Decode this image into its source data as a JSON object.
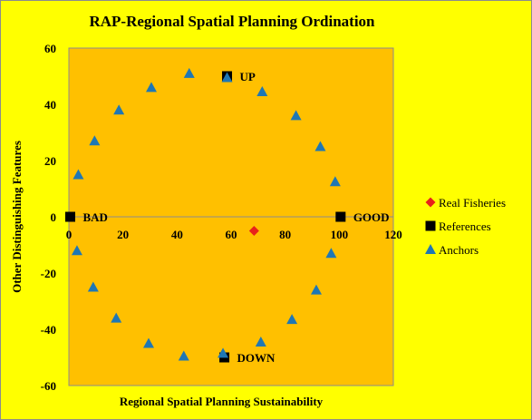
{
  "chart_data": {
    "type": "scatter",
    "title": "RAP-Regional Spatial Planning Ordination",
    "xlabel": "Regional Spatial Planning Sustainability",
    "ylabel": "Other Distinguishing Features",
    "xlim": [
      0,
      120
    ],
    "ylim": [
      -60,
      60
    ],
    "xticks": [
      "0",
      "20",
      "40",
      "60",
      "80",
      "100",
      "120"
    ],
    "yticks": [
      "60",
      "40",
      "20",
      "0",
      "-20",
      "-40",
      "-60"
    ],
    "grid": false,
    "legend_position": "right",
    "colors": {
      "background": "#ffff00",
      "plot_area": "#ffc000",
      "real_fisheries": "#e8221a",
      "references": "#000000",
      "anchors": "#1f77b4"
    },
    "series": [
      {
        "name": "Real Fisheries",
        "marker": "diamond",
        "points": [
          {
            "x": 68.5,
            "y": -5
          }
        ]
      },
      {
        "name": "References",
        "marker": "square",
        "points": [
          {
            "x": 0.5,
            "y": 0,
            "label": "BAD"
          },
          {
            "x": 58.5,
            "y": 50,
            "label": "UP"
          },
          {
            "x": 100.5,
            "y": 0,
            "label": "GOOD"
          },
          {
            "x": 57.5,
            "y": -50,
            "label": "DOWN"
          }
        ]
      },
      {
        "name": "Anchors",
        "marker": "triangle",
        "points": [
          {
            "x": 44.5,
            "y": 51
          },
          {
            "x": 58.5,
            "y": 49.5
          },
          {
            "x": 71.5,
            "y": 44.5
          },
          {
            "x": 30.5,
            "y": 46
          },
          {
            "x": 84,
            "y": 36
          },
          {
            "x": 18.5,
            "y": 38
          },
          {
            "x": 9.5,
            "y": 27
          },
          {
            "x": 93,
            "y": 25
          },
          {
            "x": 3.5,
            "y": 15
          },
          {
            "x": 98.5,
            "y": 12.5
          },
          {
            "x": 3,
            "y": -12
          },
          {
            "x": 97,
            "y": -13
          },
          {
            "x": 9,
            "y": -25
          },
          {
            "x": 91.5,
            "y": -26
          },
          {
            "x": 17.5,
            "y": -36
          },
          {
            "x": 82.5,
            "y": -36.5
          },
          {
            "x": 29.5,
            "y": -45
          },
          {
            "x": 71,
            "y": -44.5
          },
          {
            "x": 42.5,
            "y": -49.5
          },
          {
            "x": 57,
            "y": -48.5
          }
        ]
      }
    ]
  }
}
